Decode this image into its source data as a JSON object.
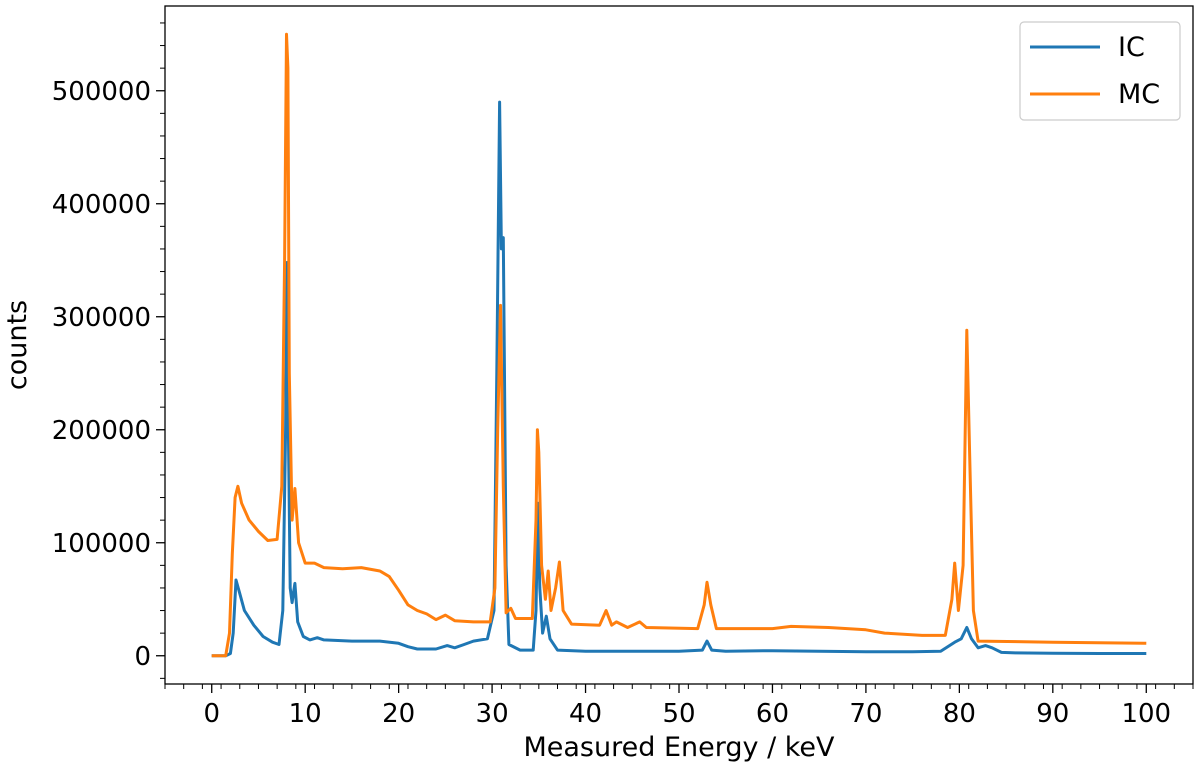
{
  "chart_data": {
    "type": "line",
    "title": "",
    "xlabel": "Measured Energy / keV",
    "ylabel": "counts",
    "xlim": [
      -5,
      105
    ],
    "ylim": [
      -25000,
      575000
    ],
    "x_ticks": [
      0,
      10,
      20,
      30,
      40,
      50,
      60,
      70,
      80,
      90,
      100
    ],
    "y_ticks": [
      0,
      100000,
      200000,
      300000,
      400000,
      500000
    ],
    "grid": false,
    "legend_position": "top-right",
    "series": [
      {
        "name": "IC",
        "color": "#1f77b4",
        "points": [
          [
            0,
            0
          ],
          [
            1.5,
            0
          ],
          [
            2.0,
            2000
          ],
          [
            2.3,
            20000
          ],
          [
            2.6,
            67000
          ],
          [
            3.0,
            55000
          ],
          [
            3.5,
            40000
          ],
          [
            4.5,
            27000
          ],
          [
            5.5,
            17000
          ],
          [
            6.5,
            12000
          ],
          [
            7.2,
            10000
          ],
          [
            7.6,
            40000
          ],
          [
            7.9,
            200000
          ],
          [
            8.05,
            348000
          ],
          [
            8.2,
            200000
          ],
          [
            8.4,
            60000
          ],
          [
            8.6,
            47000
          ],
          [
            8.9,
            64000
          ],
          [
            9.2,
            30000
          ],
          [
            9.8,
            17000
          ],
          [
            10.5,
            14000
          ],
          [
            11.3,
            16000
          ],
          [
            12,
            14000
          ],
          [
            15,
            13000
          ],
          [
            18,
            13000
          ],
          [
            20,
            11000
          ],
          [
            21,
            8000
          ],
          [
            22,
            6000
          ],
          [
            24,
            6000
          ],
          [
            25.2,
            9000
          ],
          [
            26,
            7000
          ],
          [
            27,
            10000
          ],
          [
            28,
            13000
          ],
          [
            29.5,
            15000
          ],
          [
            30.2,
            40000
          ],
          [
            30.5,
            250000
          ],
          [
            30.8,
            490000
          ],
          [
            31.0,
            360000
          ],
          [
            31.2,
            370000
          ],
          [
            31.5,
            80000
          ],
          [
            31.8,
            10000
          ],
          [
            33,
            5000
          ],
          [
            34.4,
            5000
          ],
          [
            34.7,
            40000
          ],
          [
            34.9,
            135000
          ],
          [
            35.1,
            60000
          ],
          [
            35.4,
            20000
          ],
          [
            35.8,
            35000
          ],
          [
            36.2,
            15000
          ],
          [
            37,
            5000
          ],
          [
            40,
            4000
          ],
          [
            45,
            4000
          ],
          [
            50,
            4000
          ],
          [
            52.5,
            5000
          ],
          [
            53,
            13000
          ],
          [
            53.5,
            5000
          ],
          [
            55,
            4000
          ],
          [
            60,
            4500
          ],
          [
            65,
            4000
          ],
          [
            70,
            3500
          ],
          [
            75,
            3500
          ],
          [
            78,
            4000
          ],
          [
            79.5,
            12000
          ],
          [
            80.2,
            15000
          ],
          [
            80.8,
            25000
          ],
          [
            81.3,
            15000
          ],
          [
            82,
            7000
          ],
          [
            82.8,
            9000
          ],
          [
            83.5,
            7000
          ],
          [
            84.5,
            3000
          ],
          [
            86,
            2500
          ],
          [
            90,
            2200
          ],
          [
            95,
            2000
          ],
          [
            100,
            2000
          ]
        ]
      },
      {
        "name": "MC",
        "color": "#ff7f0e",
        "points": [
          [
            0,
            0
          ],
          [
            1.5,
            0
          ],
          [
            1.9,
            20000
          ],
          [
            2.2,
            90000
          ],
          [
            2.5,
            140000
          ],
          [
            2.8,
            150000
          ],
          [
            3.2,
            135000
          ],
          [
            4,
            120000
          ],
          [
            5,
            110000
          ],
          [
            6,
            102000
          ],
          [
            7,
            103000
          ],
          [
            7.5,
            150000
          ],
          [
            7.8,
            350000
          ],
          [
            8.0,
            550000
          ],
          [
            8.15,
            520000
          ],
          [
            8.3,
            250000
          ],
          [
            8.6,
            120000
          ],
          [
            8.9,
            148000
          ],
          [
            9.3,
            100000
          ],
          [
            10,
            82000
          ],
          [
            11,
            82000
          ],
          [
            12,
            78000
          ],
          [
            14,
            77000
          ],
          [
            16,
            78000
          ],
          [
            18,
            75000
          ],
          [
            19,
            70000
          ],
          [
            20,
            58000
          ],
          [
            21,
            45000
          ],
          [
            22,
            40000
          ],
          [
            23,
            37000
          ],
          [
            24,
            32000
          ],
          [
            25,
            36000
          ],
          [
            26,
            31000
          ],
          [
            28,
            30000
          ],
          [
            29.8,
            30000
          ],
          [
            30.3,
            60000
          ],
          [
            30.6,
            200000
          ],
          [
            30.9,
            310000
          ],
          [
            31.2,
            150000
          ],
          [
            31.5,
            38000
          ],
          [
            32,
            42000
          ],
          [
            32.5,
            33000
          ],
          [
            34.3,
            33000
          ],
          [
            34.7,
            120000
          ],
          [
            34.85,
            200000
          ],
          [
            35.0,
            180000
          ],
          [
            35.3,
            80000
          ],
          [
            35.7,
            50000
          ],
          [
            36,
            75000
          ],
          [
            36.3,
            40000
          ],
          [
            36.8,
            60000
          ],
          [
            37.2,
            83000
          ],
          [
            37.6,
            40000
          ],
          [
            38.5,
            28000
          ],
          [
            41.5,
            27000
          ],
          [
            42.2,
            40000
          ],
          [
            42.8,
            27000
          ],
          [
            43.3,
            30000
          ],
          [
            44.5,
            25000
          ],
          [
            45.8,
            30000
          ],
          [
            46.5,
            25000
          ],
          [
            52,
            24000
          ],
          [
            52.7,
            45000
          ],
          [
            53.0,
            65000
          ],
          [
            53.4,
            45000
          ],
          [
            54,
            24000
          ],
          [
            60,
            24000
          ],
          [
            62,
            26000
          ],
          [
            66,
            25000
          ],
          [
            70,
            23000
          ],
          [
            72,
            20000
          ],
          [
            76,
            18000
          ],
          [
            78.5,
            18000
          ],
          [
            79.2,
            50000
          ],
          [
            79.5,
            82000
          ],
          [
            79.9,
            40000
          ],
          [
            80.4,
            80000
          ],
          [
            80.8,
            288000
          ],
          [
            81.1,
            180000
          ],
          [
            81.5,
            40000
          ],
          [
            82,
            13000
          ],
          [
            90,
            12000
          ],
          [
            100,
            11000
          ]
        ]
      }
    ]
  }
}
